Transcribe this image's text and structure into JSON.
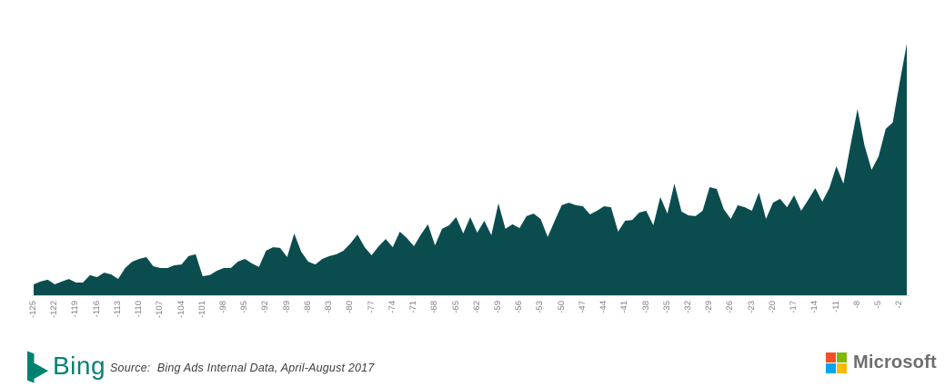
{
  "chart_data": {
    "type": "area",
    "title": "",
    "xlabel": "",
    "ylabel": "",
    "x_start": -125,
    "x_end": -1,
    "x_tick_step": 3,
    "tick_labels": [
      "-125",
      "-122",
      "-119",
      "-116",
      "-113",
      "-110",
      "-107",
      "-104",
      "-101",
      "-98",
      "-95",
      "-92",
      "-89",
      "-86",
      "-83",
      "-80",
      "-77",
      "-74",
      "-71",
      "-68",
      "-65",
      "-62",
      "-59",
      "-56",
      "-53",
      "-50",
      "-47",
      "-44",
      "-41",
      "-38",
      "-35",
      "-32",
      "-29",
      "-26",
      "-23",
      "-20",
      "-17",
      "-14",
      "-11",
      "-8",
      "-5",
      "-2"
    ],
    "values": [
      4.3,
      5.4,
      6.1,
      4.3,
      5.4,
      6.4,
      5.0,
      5.0,
      7.9,
      7.1,
      8.9,
      8.2,
      6.4,
      10.7,
      13.2,
      14.3,
      15.0,
      11.4,
      10.7,
      10.7,
      11.8,
      12.1,
      15.4,
      16.1,
      7.5,
      7.9,
      9.6,
      10.7,
      10.7,
      13.2,
      14.3,
      12.5,
      11.1,
      17.5,
      18.9,
      18.6,
      15.0,
      24.3,
      17.1,
      13.2,
      12.1,
      14.3,
      15.4,
      16.1,
      17.5,
      20.4,
      23.9,
      18.9,
      15.7,
      19.3,
      22.1,
      18.9,
      25.0,
      22.5,
      19.3,
      23.9,
      27.9,
      19.6,
      26.1,
      27.5,
      30.7,
      24.3,
      30.7,
      24.6,
      29.3,
      23.6,
      36.1,
      26.1,
      27.9,
      26.4,
      31.1,
      32.1,
      30.0,
      22.9,
      29.3,
      35.4,
      36.4,
      35.4,
      35.0,
      31.8,
      33.2,
      35.0,
      34.6,
      25.0,
      29.3,
      29.6,
      32.5,
      33.2,
      27.5,
      38.6,
      32.1,
      43.9,
      32.9,
      31.4,
      31.1,
      33.2,
      42.5,
      41.8,
      33.9,
      30.0,
      35.4,
      34.6,
      33.2,
      40.4,
      30.0,
      36.4,
      37.9,
      34.6,
      39.3,
      33.2,
      37.5,
      42.1,
      36.8,
      42.1,
      50.7,
      43.9,
      58.9,
      73.2,
      58.9,
      49.3,
      54.6,
      65.4,
      67.9,
      83.9,
      98.9
    ],
    "y_unit": "relative height (0-100, no y-axis shown)",
    "ylim": [
      0,
      100
    ],
    "grid": "off",
    "legend": "none",
    "fill_color": "#0b4d4f",
    "axis_line_color": "#d9d9d9",
    "tick_label_color": "#808080"
  },
  "footer": {
    "bing_logo_text": "Bing",
    "bing_color": "#008272",
    "source_caption": "Source:  Bing Ads Internal Data, April-August 2017",
    "microsoft_logo_text": "Microsoft",
    "ms_square_colors": {
      "top_left": "#f25022",
      "top_right": "#7fba00",
      "bottom_left": "#00a4ef",
      "bottom_right": "#ffb900"
    }
  }
}
